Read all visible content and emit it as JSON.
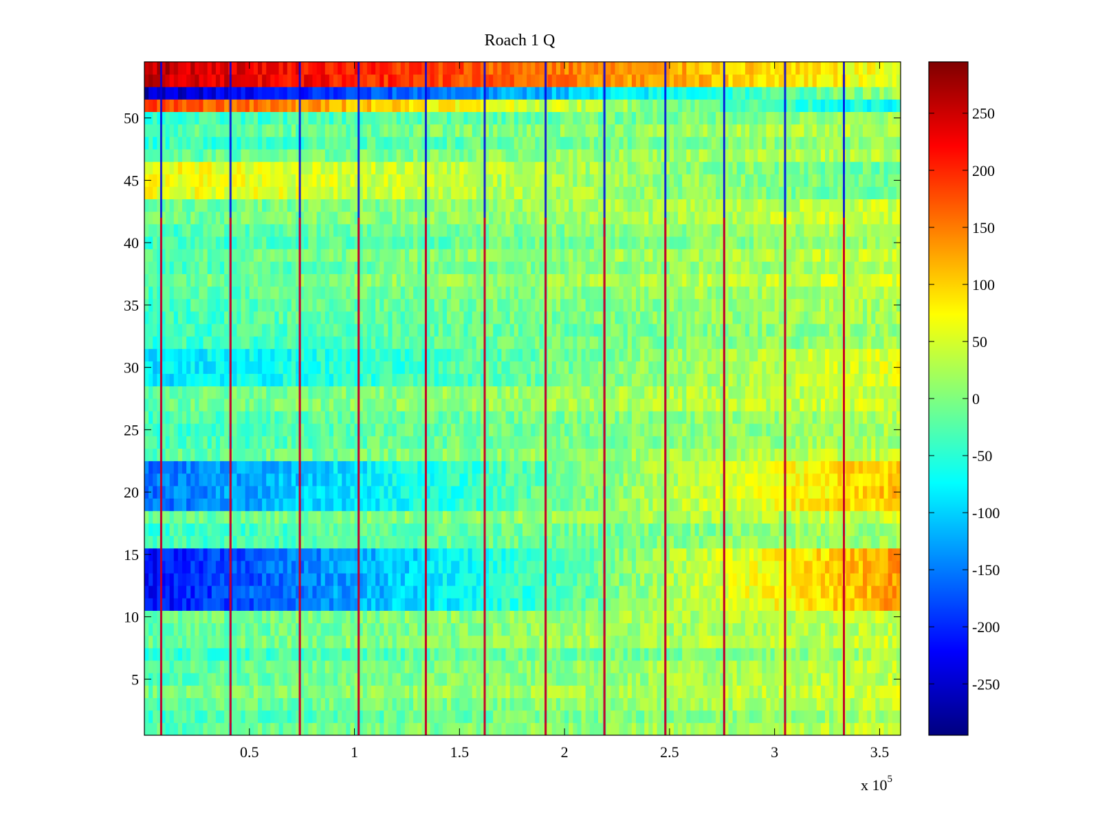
{
  "chart_data": {
    "type": "heatmap",
    "title": "Roach 1 Q",
    "xlabel": "",
    "ylabel": "",
    "x_axis": {
      "range": [
        0,
        360000
      ],
      "ticks": [
        50000,
        100000,
        150000,
        200000,
        250000,
        300000,
        350000
      ],
      "tick_labels": [
        "0.5",
        "1",
        "1.5",
        "2",
        "2.5",
        "3",
        "3.5"
      ],
      "exponent_label": "x 10",
      "exponent_power": "5"
    },
    "y_axis": {
      "range": [
        0.5,
        54.5
      ],
      "ticks": [
        5,
        10,
        15,
        20,
        25,
        30,
        35,
        40,
        45,
        50
      ],
      "tick_labels": [
        "5",
        "10",
        "15",
        "20",
        "25",
        "30",
        "35",
        "40",
        "45",
        "50"
      ]
    },
    "colorbar": {
      "colormap": "jet",
      "range": [
        -295,
        295
      ],
      "ticks": [
        250,
        200,
        150,
        100,
        50,
        0,
        -50,
        -100,
        -150,
        -200,
        -250
      ],
      "tick_labels": [
        "250",
        "200",
        "150",
        "100",
        "50",
        "0",
        "-50",
        "-100",
        "-150",
        "-200",
        "-250"
      ]
    },
    "rows": 54,
    "x_max": 360000,
    "vertical_event_lines_x": [
      8000,
      41000,
      74000,
      102000,
      134000,
      162000,
      191000,
      219000,
      248000,
      276000,
      305000,
      333000
    ],
    "row_profiles": [
      {
        "rows": [
          53,
          54
        ],
        "start": 260,
        "end": 60
      },
      {
        "rows": [
          52,
          53
        ],
        "start": -260,
        "end": 15
      },
      {
        "rows": [
          51,
          52
        ],
        "start": 190,
        "end": -80
      },
      {
        "rows": [
          44,
          46
        ],
        "start": 70,
        "end": -15
      },
      {
        "rows": [
          29,
          31
        ],
        "start": -90,
        "end": 55
      },
      {
        "rows": [
          19,
          22
        ],
        "start": -160,
        "end": 110
      },
      {
        "rows": [
          11,
          15
        ],
        "start": -220,
        "end": 130
      }
    ],
    "grid": false,
    "legend": "none"
  }
}
